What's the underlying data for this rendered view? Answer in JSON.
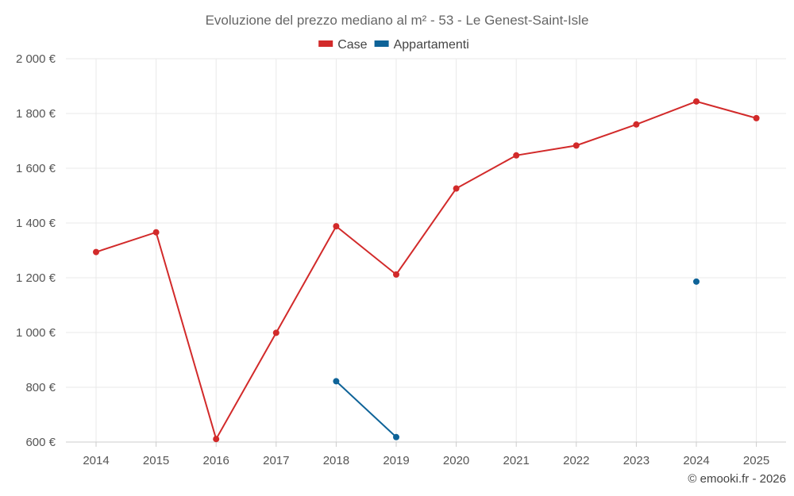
{
  "chart_data": {
    "type": "line",
    "title": "Evoluzione del prezzo mediano al m² - 53 - Le Genest-Saint-Isle",
    "categories": [
      "2014",
      "2015",
      "2016",
      "2017",
      "2018",
      "2019",
      "2020",
      "2021",
      "2022",
      "2023",
      "2024",
      "2025"
    ],
    "series": [
      {
        "name": "Case",
        "color": "#d22a2a",
        "values": [
          1294,
          1366,
          611,
          999,
          1388,
          1212,
          1526,
          1647,
          1683,
          1760,
          1844,
          1783
        ]
      },
      {
        "name": "Appartamenti",
        "color": "#0e6398",
        "values": [
          null,
          null,
          null,
          null,
          822,
          618,
          null,
          null,
          null,
          null,
          1186,
          null
        ]
      }
    ],
    "y_ticks": [
      600,
      800,
      1000,
      1200,
      1400,
      1600,
      1800,
      2000
    ],
    "y_tick_labels": [
      "600 €",
      "800 €",
      "1 000 €",
      "1 200 €",
      "1 400 €",
      "1 600 €",
      "1 800 €",
      "2 000 €"
    ],
    "ylim": [
      600,
      2000
    ],
    "grid": true,
    "legend_position": "top-center"
  },
  "credit": "© emooki.fr - 2026"
}
